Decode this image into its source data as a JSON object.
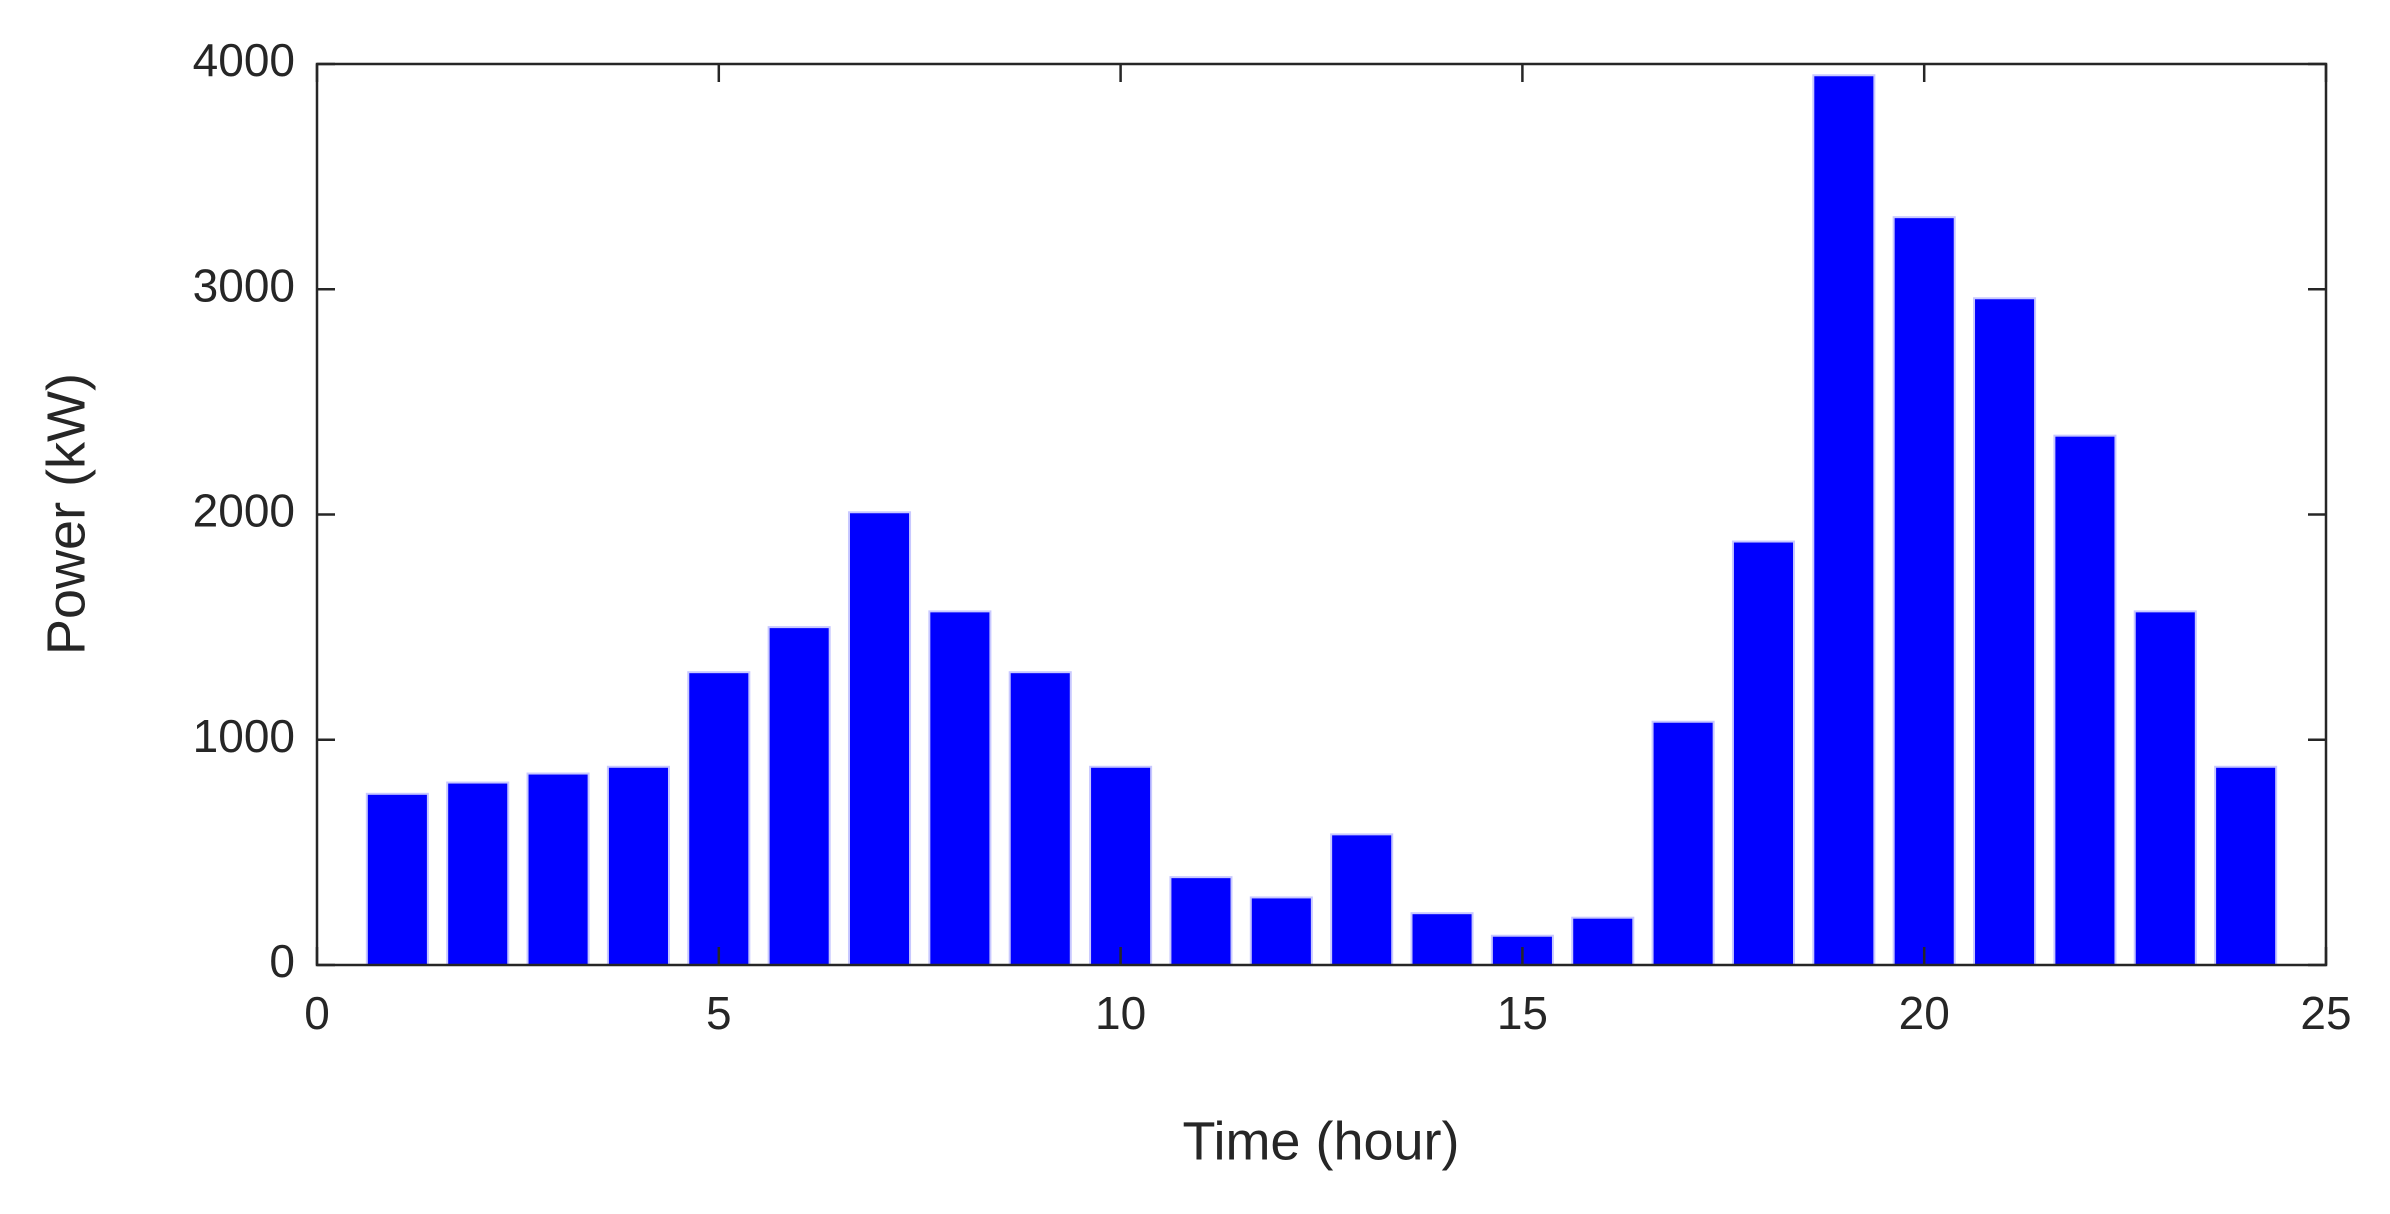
{
  "chart_data": {
    "type": "bar",
    "xlabel": "Time (hour)",
    "ylabel": "Power (kW)",
    "x": [
      1,
      2,
      3,
      4,
      5,
      6,
      7,
      8,
      9,
      10,
      11,
      12,
      13,
      14,
      15,
      16,
      17,
      18,
      19,
      20,
      21,
      22,
      23,
      24
    ],
    "values": [
      760,
      810,
      850,
      880,
      1300,
      1500,
      2010,
      1570,
      1300,
      880,
      390,
      300,
      580,
      230,
      130,
      210,
      1080,
      1880,
      3950,
      3320,
      2960,
      2350,
      1570,
      880
    ],
    "color": "#0000ff",
    "xlim": [
      0,
      25
    ],
    "xticks": [
      0,
      5,
      10,
      15,
      20,
      25
    ],
    "ylim": [
      0,
      4000
    ],
    "yticks": [
      0,
      1000,
      2000,
      3000,
      4000
    ],
    "grid": false
  }
}
